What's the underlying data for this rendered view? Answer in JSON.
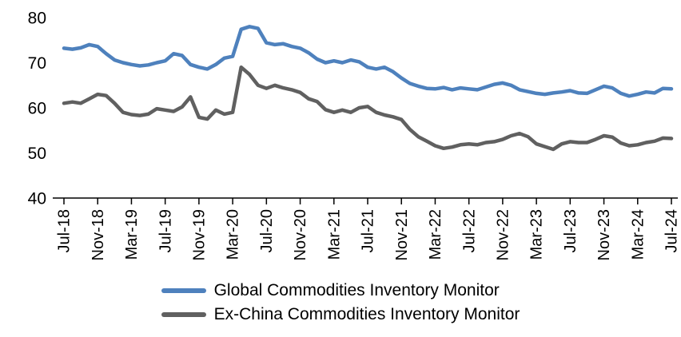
{
  "chart_data": {
    "type": "line",
    "title": "",
    "xlabel": "",
    "ylabel": "",
    "grid": false,
    "legend_position": "bottom",
    "ylim": [
      40,
      80
    ],
    "yticks": [
      40,
      50,
      60,
      70,
      80
    ],
    "x_tick_step": 4,
    "x": [
      "Jul-18",
      "Aug-18",
      "Sep-18",
      "Oct-18",
      "Nov-18",
      "Dec-18",
      "Jan-19",
      "Feb-19",
      "Mar-19",
      "Apr-19",
      "May-19",
      "Jun-19",
      "Jul-19",
      "Aug-19",
      "Sep-19",
      "Oct-19",
      "Nov-19",
      "Dec-19",
      "Jan-20",
      "Feb-20",
      "Mar-20",
      "Apr-20",
      "May-20",
      "Jun-20",
      "Jul-20",
      "Aug-20",
      "Sep-20",
      "Oct-20",
      "Nov-20",
      "Dec-20",
      "Jan-21",
      "Feb-21",
      "Mar-21",
      "Apr-21",
      "May-21",
      "Jun-21",
      "Jul-21",
      "Aug-21",
      "Sep-21",
      "Oct-21",
      "Nov-21",
      "Dec-21",
      "Jan-22",
      "Feb-22",
      "Mar-22",
      "Apr-22",
      "May-22",
      "Jun-22",
      "Jul-22",
      "Aug-22",
      "Sep-22",
      "Oct-22",
      "Nov-22",
      "Dec-22",
      "Jan-23",
      "Feb-23",
      "Mar-23",
      "Apr-23",
      "May-23",
      "Jun-23",
      "Jul-23",
      "Aug-23",
      "Sep-23",
      "Oct-23",
      "Nov-23",
      "Dec-23",
      "Jan-24",
      "Feb-24",
      "Mar-24",
      "Apr-24",
      "May-24",
      "Jun-24",
      "Jul-24"
    ],
    "series": [
      {
        "name": "Global Commodities Inventory Monitor",
        "color": "#4E81BD",
        "values": [
          73.2,
          73.0,
          73.3,
          74.0,
          73.6,
          72.0,
          70.6,
          70.0,
          69.6,
          69.3,
          69.5,
          70.0,
          70.4,
          72.0,
          71.6,
          69.6,
          69.0,
          68.6,
          69.6,
          71.0,
          71.4,
          77.4,
          78.0,
          77.6,
          74.4,
          74.0,
          74.2,
          73.6,
          73.2,
          72.2,
          70.8,
          70.0,
          70.4,
          70.0,
          70.6,
          70.2,
          69.0,
          68.6,
          69.0,
          68.0,
          66.6,
          65.4,
          64.8,
          64.3,
          64.2,
          64.5,
          64.0,
          64.4,
          64.2,
          64.0,
          64.6,
          65.2,
          65.5,
          65.0,
          64.0,
          63.6,
          63.2,
          63.0,
          63.3,
          63.5,
          63.8,
          63.3,
          63.2,
          64.0,
          64.8,
          64.4,
          63.2,
          62.6,
          63.0,
          63.5,
          63.3,
          64.3,
          64.2
        ]
      },
      {
        "name": "Ex-China Commodities Inventory Monitor",
        "color": "#606060",
        "values": [
          61.0,
          61.3,
          61.0,
          62.0,
          63.0,
          62.7,
          61.0,
          59.0,
          58.5,
          58.3,
          58.6,
          59.8,
          59.5,
          59.2,
          60.2,
          62.4,
          57.9,
          57.5,
          59.5,
          58.6,
          59.0,
          69.0,
          67.4,
          65.0,
          64.3,
          65.0,
          64.4,
          64.0,
          63.4,
          62.0,
          61.4,
          59.6,
          59.0,
          59.5,
          59.0,
          60.0,
          60.3,
          59.0,
          58.4,
          58.0,
          57.4,
          55.2,
          53.6,
          52.6,
          51.6,
          51.0,
          51.3,
          51.8,
          52.0,
          51.8,
          52.3,
          52.5,
          53.0,
          53.8,
          54.3,
          53.6,
          52.0,
          51.4,
          50.8,
          52.0,
          52.5,
          52.3,
          52.3,
          53.0,
          53.8,
          53.5,
          52.2,
          51.6,
          51.8,
          52.3,
          52.6,
          53.3,
          53.2
        ]
      }
    ]
  },
  "colors": {
    "axis": "#000000",
    "background": "#FFFFFF"
  }
}
